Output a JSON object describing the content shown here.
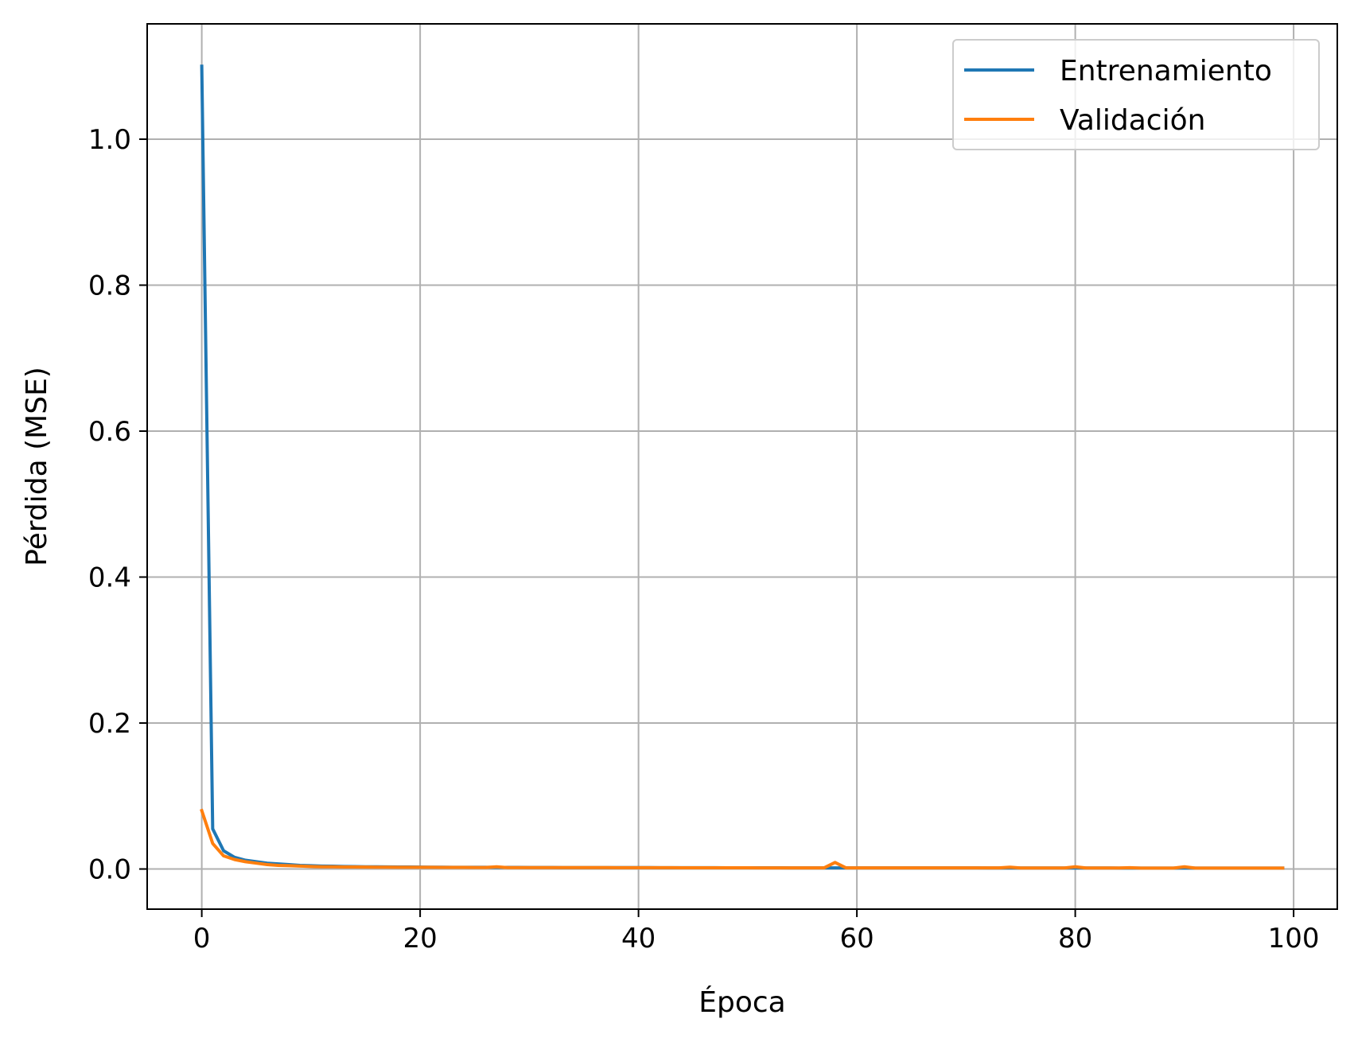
{
  "chart_data": {
    "type": "line",
    "xlabel": "Época",
    "ylabel": "Pérdida (MSE)",
    "xlim": [
      -5,
      104
    ],
    "ylim": [
      -0.055,
      1.158
    ],
    "xticks": [
      0,
      20,
      40,
      60,
      80,
      100
    ],
    "yticks": [
      0.0,
      0.2,
      0.4,
      0.6,
      0.8,
      1.0
    ],
    "xtick_labels": [
      "0",
      "20",
      "40",
      "60",
      "80",
      "100"
    ],
    "ytick_labels": [
      "0.0",
      "0.2",
      "0.4",
      "0.6",
      "0.8",
      "1.0"
    ],
    "grid": true,
    "legend_position": "top-right",
    "series": [
      {
        "name": "Entrenamiento",
        "color": "#1f77b4",
        "x": [
          0,
          1,
          2,
          3,
          4,
          5,
          6,
          7,
          8,
          9,
          10,
          11,
          12,
          13,
          14,
          15,
          16,
          17,
          18,
          19,
          20,
          21,
          22,
          23,
          24,
          25,
          26,
          27,
          28,
          29,
          30,
          31,
          32,
          33,
          34,
          35,
          36,
          37,
          38,
          39,
          40,
          41,
          42,
          43,
          44,
          45,
          46,
          47,
          48,
          49,
          50,
          51,
          52,
          53,
          54,
          55,
          56,
          57,
          58,
          59,
          60,
          61,
          62,
          63,
          64,
          65,
          66,
          67,
          68,
          69,
          70,
          71,
          72,
          73,
          74,
          75,
          76,
          77,
          78,
          79,
          80,
          81,
          82,
          83,
          84,
          85,
          86,
          87,
          88,
          89,
          90,
          91,
          92,
          93,
          94,
          95,
          96,
          97,
          98,
          99
        ],
        "y": [
          1.1,
          0.055,
          0.025,
          0.016,
          0.012,
          0.01,
          0.008,
          0.007,
          0.006,
          0.005,
          0.0045,
          0.004,
          0.0038,
          0.0035,
          0.0033,
          0.0031,
          0.003,
          0.0029,
          0.0028,
          0.0027,
          0.0026,
          0.0025,
          0.0025,
          0.0024,
          0.0024,
          0.0023,
          0.0023,
          0.0022,
          0.0022,
          0.0022,
          0.0021,
          0.0021,
          0.0021,
          0.002,
          0.002,
          0.002,
          0.002,
          0.0019,
          0.0019,
          0.0019,
          0.0019,
          0.0019,
          0.0018,
          0.0018,
          0.0018,
          0.0018,
          0.0018,
          0.0018,
          0.0017,
          0.0017,
          0.0017,
          0.0017,
          0.0017,
          0.0017,
          0.0016,
          0.0016,
          0.0016,
          0.0016,
          0.0016,
          0.0016,
          0.0016,
          0.0016,
          0.0015,
          0.0015,
          0.0015,
          0.0015,
          0.0015,
          0.0015,
          0.0015,
          0.0015,
          0.0015,
          0.0015,
          0.0014,
          0.0014,
          0.0014,
          0.0014,
          0.0014,
          0.0014,
          0.0014,
          0.0014,
          0.0014,
          0.0014,
          0.0014,
          0.0014,
          0.0013,
          0.0013,
          0.0013,
          0.0013,
          0.0013,
          0.0013,
          0.0013,
          0.0013,
          0.0013,
          0.0013,
          0.0013,
          0.0013,
          0.0013,
          0.0013,
          0.0013,
          0.0013
        ]
      },
      {
        "name": "Validación",
        "color": "#ff7f0e",
        "x": [
          0,
          1,
          2,
          3,
          4,
          5,
          6,
          7,
          8,
          9,
          10,
          11,
          12,
          13,
          14,
          15,
          16,
          17,
          18,
          19,
          20,
          21,
          22,
          23,
          24,
          25,
          26,
          27,
          28,
          29,
          30,
          31,
          32,
          33,
          34,
          35,
          36,
          37,
          38,
          39,
          40,
          41,
          42,
          43,
          44,
          45,
          46,
          47,
          48,
          49,
          50,
          51,
          52,
          53,
          54,
          55,
          56,
          57,
          58,
          59,
          60,
          61,
          62,
          63,
          64,
          65,
          66,
          67,
          68,
          69,
          70,
          71,
          72,
          73,
          74,
          75,
          76,
          77,
          78,
          79,
          80,
          81,
          82,
          83,
          84,
          85,
          86,
          87,
          88,
          89,
          90,
          91,
          92,
          93,
          94,
          95,
          96,
          97,
          98,
          99
        ],
        "y": [
          0.08,
          0.035,
          0.018,
          0.013,
          0.01,
          0.008,
          0.006,
          0.005,
          0.0045,
          0.004,
          0.0035,
          0.003,
          0.003,
          0.0028,
          0.0027,
          0.0026,
          0.0025,
          0.0025,
          0.0024,
          0.0024,
          0.0023,
          0.0023,
          0.0022,
          0.0022,
          0.0022,
          0.0021,
          0.0021,
          0.003,
          0.002,
          0.002,
          0.002,
          0.002,
          0.002,
          0.0019,
          0.0019,
          0.0019,
          0.0019,
          0.0019,
          0.0018,
          0.0018,
          0.0018,
          0.0018,
          0.0018,
          0.0018,
          0.0017,
          0.0017,
          0.0017,
          0.0017,
          0.0017,
          0.0017,
          0.0017,
          0.0016,
          0.0016,
          0.0016,
          0.0016,
          0.0016,
          0.0016,
          0.0016,
          0.009,
          0.0016,
          0.0015,
          0.0015,
          0.0015,
          0.0015,
          0.0015,
          0.0015,
          0.0015,
          0.0016,
          0.0015,
          0.0015,
          0.0015,
          0.0015,
          0.0015,
          0.0015,
          0.0025,
          0.0014,
          0.0014,
          0.0014,
          0.0014,
          0.0014,
          0.003,
          0.0014,
          0.0014,
          0.0014,
          0.0014,
          0.0018,
          0.0013,
          0.0013,
          0.0013,
          0.0013,
          0.003,
          0.0013,
          0.0013,
          0.0013,
          0.0013,
          0.0013,
          0.0013,
          0.0013,
          0.0013,
          0.0013
        ]
      }
    ]
  }
}
